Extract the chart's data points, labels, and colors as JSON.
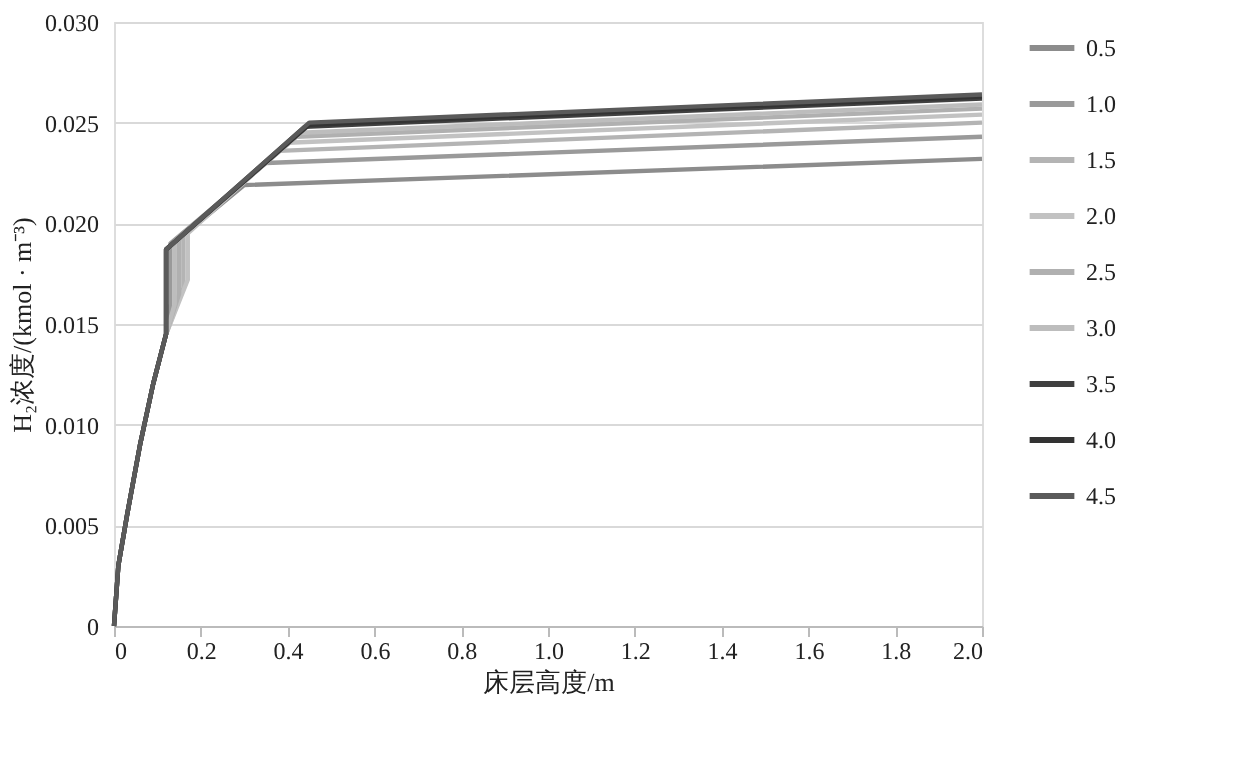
{
  "chart_data": {
    "type": "line",
    "xlabel": "床层高度/m",
    "ylabel": "H₂浓度/(kmol · m⁻³)",
    "xlim": [
      0,
      2.0
    ],
    "ylim": [
      0,
      0.03
    ],
    "xticks": [
      0,
      0.2,
      0.4,
      0.6,
      0.8,
      {
        "value": 1,
        "label": "1.0"
      },
      1.2,
      1.4,
      1.6,
      1.8,
      {
        "value": 2,
        "label": "2.0"
      }
    ],
    "yticks": [
      0,
      0.005,
      {
        "value": 0.01,
        "label": "0.010"
      },
      0.015,
      {
        "value": 0.02,
        "label": "0.020"
      },
      0.025,
      {
        "value": 0.03,
        "label": "0.030"
      }
    ],
    "grid": "y",
    "legend": "right",
    "line_style": "solid",
    "marker": "none",
    "series": [
      {
        "name": "0.5",
        "color": "#8c8c8c",
        "x": [
          0,
          0.01,
          0.03,
          0.06,
          0.09,
          0.12,
          0.12,
          0.3,
          2.0
        ],
        "values": [
          0,
          0.003,
          0.0055,
          0.009,
          0.012,
          0.0145,
          0.0187,
          0.0219,
          0.0232
        ]
      },
      {
        "name": "1.0",
        "color": "#9a9a9a",
        "x": [
          0,
          0.01,
          0.03,
          0.06,
          0.09,
          0.12,
          0.13,
          0.13,
          0.35,
          2.0
        ],
        "values": [
          0,
          0.003,
          0.0055,
          0.009,
          0.012,
          0.0145,
          0.016,
          0.019,
          0.023,
          0.0243
        ]
      },
      {
        "name": "1.5",
        "color": "#b4b4b4",
        "x": [
          0,
          0.01,
          0.03,
          0.06,
          0.09,
          0.12,
          0.16,
          0.16,
          0.38,
          2.0
        ],
        "values": [
          0,
          0.003,
          0.0055,
          0.009,
          0.012,
          0.0145,
          0.0168,
          0.0194,
          0.0236,
          0.025
        ]
      },
      {
        "name": "2.0",
        "color": "#c2c2c2",
        "x": [
          0,
          0.01,
          0.03,
          0.06,
          0.09,
          0.12,
          0.17,
          0.17,
          0.4,
          2.0
        ],
        "values": [
          0,
          0.003,
          0.0055,
          0.009,
          0.012,
          0.0145,
          0.0172,
          0.0195,
          0.024,
          0.0254
        ]
      },
      {
        "name": "2.5",
        "color": "#b0b0b0",
        "x": [
          0,
          0.01,
          0.03,
          0.06,
          0.09,
          0.12,
          0.15,
          0.15,
          0.42,
          2.0
        ],
        "values": [
          0,
          0.003,
          0.0055,
          0.009,
          0.012,
          0.0145,
          0.0165,
          0.0193,
          0.0243,
          0.0257
        ]
      },
      {
        "name": "3.0",
        "color": "#bdbdbd",
        "x": [
          0,
          0.01,
          0.03,
          0.06,
          0.09,
          0.12,
          0.14,
          0.14,
          0.43,
          2.0
        ],
        "values": [
          0,
          0.003,
          0.0055,
          0.009,
          0.012,
          0.0145,
          0.016,
          0.0191,
          0.0245,
          0.0259
        ]
      },
      {
        "name": "3.5",
        "color": "#404040",
        "x": [
          0,
          0.01,
          0.03,
          0.06,
          0.09,
          0.12,
          0.12,
          0.44,
          2.0
        ],
        "values": [
          0,
          0.003,
          0.0055,
          0.009,
          0.012,
          0.0145,
          0.0187,
          0.0248,
          0.0262
        ]
      },
      {
        "name": "4.0",
        "color": "#333333",
        "x": [
          0,
          0.01,
          0.03,
          0.06,
          0.09,
          0.12,
          0.12,
          0.45,
          2.0
        ],
        "values": [
          0,
          0.003,
          0.0055,
          0.009,
          0.012,
          0.0145,
          0.0187,
          0.0249,
          0.0263
        ]
      },
      {
        "name": "4.5",
        "color": "#5a5a5a",
        "x": [
          0,
          0.01,
          0.03,
          0.06,
          0.09,
          0.12,
          0.12,
          0.45,
          2.0
        ],
        "values": [
          0,
          0.003,
          0.0055,
          0.009,
          0.012,
          0.0145,
          0.0187,
          0.025,
          0.0264
        ]
      }
    ]
  }
}
